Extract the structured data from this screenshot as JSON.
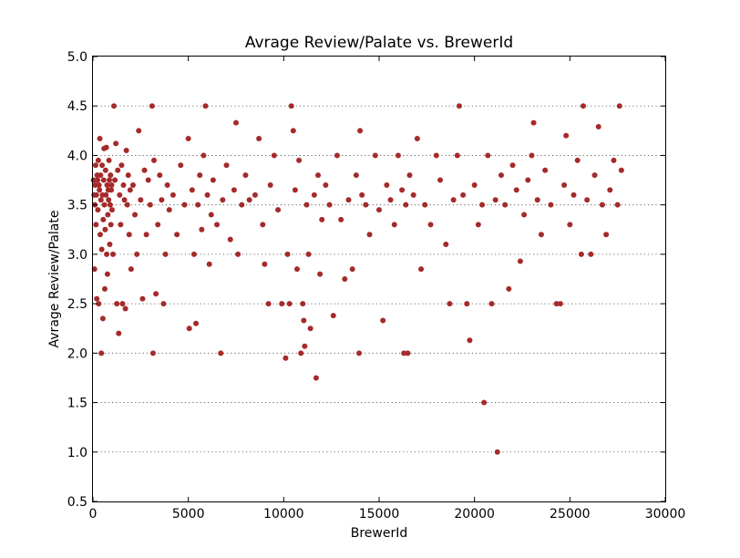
{
  "chart_data": {
    "type": "scatter",
    "title": "Avrage Review/Palate vs. BrewerId",
    "xlabel": "BrewerId",
    "ylabel": "Avrage Review/Palate",
    "xlim": [
      0,
      30000
    ],
    "ylim": [
      0.5,
      5.0
    ],
    "xticks": [
      0,
      5000,
      10000,
      15000,
      20000,
      25000,
      30000
    ],
    "yticks": [
      0.5,
      1.0,
      1.5,
      2.0,
      2.5,
      3.0,
      3.5,
      4.0,
      4.5,
      5.0
    ],
    "xtick_labels": [
      "0",
      "5000",
      "10000",
      "15000",
      "20000",
      "25000",
      "30000"
    ],
    "ytick_labels": [
      "0.5",
      "1.0",
      "1.5",
      "2.0",
      "2.5",
      "3.0",
      "3.5",
      "4.0",
      "4.5",
      "5.0"
    ],
    "grid": "horizontal-dotted",
    "marker_color": "#a52a2a",
    "series": [
      {
        "points": [
          [
            30,
            3.75
          ],
          [
            60,
            3.6
          ],
          [
            80,
            2.85
          ],
          [
            100,
            3.5
          ],
          [
            120,
            3.7
          ],
          [
            140,
            3.9
          ],
          [
            160,
            3.3
          ],
          [
            180,
            3.6
          ],
          [
            200,
            2.55
          ],
          [
            220,
            3.8
          ],
          [
            240,
            3.75
          ],
          [
            260,
            3.45
          ],
          [
            280,
            3.95
          ],
          [
            300,
            2.5
          ],
          [
            320,
            3.7
          ],
          [
            340,
            3.65
          ],
          [
            360,
            4.17
          ],
          [
            380,
            3.2
          ],
          [
            400,
            3.8
          ],
          [
            420,
            3.55
          ],
          [
            440,
            2.0
          ],
          [
            460,
            3.05
          ],
          [
            480,
            3.9
          ],
          [
            500,
            3.6
          ],
          [
            520,
            2.35
          ],
          [
            540,
            3.35
          ],
          [
            560,
            3.75
          ],
          [
            580,
            4.07
          ],
          [
            600,
            3.5
          ],
          [
            620,
            2.65
          ],
          [
            640,
            3.25
          ],
          [
            660,
            3.85
          ],
          [
            680,
            3.6
          ],
          [
            700,
            4.08
          ],
          [
            720,
            3.0
          ],
          [
            740,
            3.7
          ],
          [
            760,
            2.8
          ],
          [
            780,
            3.4
          ],
          [
            800,
            3.65
          ],
          [
            820,
            3.55
          ],
          [
            840,
            3.95
          ],
          [
            860,
            3.75
          ],
          [
            880,
            3.1
          ],
          [
            900,
            3.5
          ],
          [
            920,
            3.8
          ],
          [
            940,
            3.3
          ],
          [
            960,
            3.65
          ],
          [
            980,
            3.7
          ],
          [
            1000,
            3.45
          ],
          [
            1050,
            3.0
          ],
          [
            1100,
            4.5
          ],
          [
            1150,
            3.75
          ],
          [
            1200,
            4.12
          ],
          [
            1250,
            2.5
          ],
          [
            1300,
            3.85
          ],
          [
            1350,
            2.2
          ],
          [
            1400,
            3.6
          ],
          [
            1450,
            3.3
          ],
          [
            1500,
            3.9
          ],
          [
            1550,
            2.5
          ],
          [
            1600,
            3.7
          ],
          [
            1650,
            3.55
          ],
          [
            1700,
            2.45
          ],
          [
            1750,
            4.05
          ],
          [
            1800,
            3.5
          ],
          [
            1850,
            3.8
          ],
          [
            1900,
            3.2
          ],
          [
            1950,
            3.65
          ],
          [
            2000,
            2.85
          ],
          [
            2100,
            3.7
          ],
          [
            2200,
            3.4
          ],
          [
            2300,
            3.0
          ],
          [
            2400,
            4.25
          ],
          [
            2500,
            3.55
          ],
          [
            2600,
            2.55
          ],
          [
            2700,
            3.85
          ],
          [
            2800,
            3.2
          ],
          [
            2900,
            3.75
          ],
          [
            3000,
            3.5
          ],
          [
            3100,
            4.5
          ],
          [
            3150,
            2.0
          ],
          [
            3200,
            3.95
          ],
          [
            3300,
            2.6
          ],
          [
            3400,
            3.3
          ],
          [
            3500,
            3.8
          ],
          [
            3600,
            3.55
          ],
          [
            3700,
            2.5
          ],
          [
            3800,
            3.0
          ],
          [
            3900,
            3.7
          ],
          [
            4000,
            3.45
          ],
          [
            4200,
            3.6
          ],
          [
            4400,
            3.2
          ],
          [
            4600,
            3.9
          ],
          [
            4800,
            3.5
          ],
          [
            5000,
            4.17
          ],
          [
            5050,
            2.25
          ],
          [
            5200,
            3.65
          ],
          [
            5300,
            3.0
          ],
          [
            5400,
            2.3
          ],
          [
            5500,
            3.5
          ],
          [
            5600,
            3.8
          ],
          [
            5700,
            3.25
          ],
          [
            5800,
            4.0
          ],
          [
            5900,
            4.5
          ],
          [
            6000,
            3.6
          ],
          [
            6100,
            2.9
          ],
          [
            6200,
            3.4
          ],
          [
            6300,
            3.75
          ],
          [
            6500,
            3.3
          ],
          [
            6700,
            2.0
          ],
          [
            6800,
            3.55
          ],
          [
            7000,
            3.9
          ],
          [
            7200,
            3.15
          ],
          [
            7400,
            3.65
          ],
          [
            7500,
            4.33
          ],
          [
            7600,
            3.0
          ],
          [
            7800,
            3.5
          ],
          [
            8000,
            3.8
          ],
          [
            8200,
            3.55
          ],
          [
            8500,
            3.6
          ],
          [
            8700,
            4.17
          ],
          [
            8900,
            3.3
          ],
          [
            9000,
            2.9
          ],
          [
            9200,
            2.5
          ],
          [
            9300,
            3.7
          ],
          [
            9500,
            4.0
          ],
          [
            9700,
            3.45
          ],
          [
            9900,
            2.5
          ],
          [
            10100,
            1.95
          ],
          [
            10200,
            3.0
          ],
          [
            10300,
            2.5
          ],
          [
            10400,
            4.5
          ],
          [
            10500,
            4.25
          ],
          [
            10600,
            3.65
          ],
          [
            10700,
            2.85
          ],
          [
            10800,
            3.95
          ],
          [
            10900,
            2.0
          ],
          [
            11000,
            2.5
          ],
          [
            11050,
            2.33
          ],
          [
            11100,
            2.07
          ],
          [
            11200,
            3.5
          ],
          [
            11300,
            3.0
          ],
          [
            11400,
            2.25
          ],
          [
            11600,
            3.6
          ],
          [
            11700,
            1.75
          ],
          [
            11800,
            3.8
          ],
          [
            11900,
            2.8
          ],
          [
            12000,
            3.35
          ],
          [
            12200,
            3.7
          ],
          [
            12400,
            3.5
          ],
          [
            12600,
            2.38
          ],
          [
            12800,
            4.0
          ],
          [
            13000,
            3.35
          ],
          [
            13200,
            2.75
          ],
          [
            13400,
            3.55
          ],
          [
            13600,
            2.85
          ],
          [
            13800,
            3.8
          ],
          [
            13950,
            2.0
          ],
          [
            14000,
            4.25
          ],
          [
            14100,
            3.6
          ],
          [
            14300,
            3.5
          ],
          [
            14500,
            3.2
          ],
          [
            14800,
            4.0
          ],
          [
            15000,
            3.45
          ],
          [
            15200,
            2.33
          ],
          [
            15400,
            3.7
          ],
          [
            15600,
            3.55
          ],
          [
            15800,
            3.3
          ],
          [
            16000,
            4.0
          ],
          [
            16200,
            3.65
          ],
          [
            16300,
            2.0
          ],
          [
            16400,
            3.5
          ],
          [
            16500,
            2.0
          ],
          [
            16600,
            3.8
          ],
          [
            16800,
            3.6
          ],
          [
            17000,
            4.17
          ],
          [
            17200,
            2.85
          ],
          [
            17400,
            3.5
          ],
          [
            17700,
            3.3
          ],
          [
            18000,
            4.0
          ],
          [
            18200,
            3.75
          ],
          [
            18500,
            3.1
          ],
          [
            18700,
            2.5
          ],
          [
            18900,
            3.55
          ],
          [
            19100,
            4.0
          ],
          [
            19200,
            4.5
          ],
          [
            19400,
            3.6
          ],
          [
            19600,
            2.5
          ],
          [
            19750,
            2.13
          ],
          [
            20000,
            3.7
          ],
          [
            20200,
            3.3
          ],
          [
            20400,
            3.5
          ],
          [
            20500,
            1.5
          ],
          [
            20700,
            4.0
          ],
          [
            20900,
            2.5
          ],
          [
            21100,
            3.55
          ],
          [
            21200,
            1.0
          ],
          [
            21400,
            3.8
          ],
          [
            21600,
            3.5
          ],
          [
            21800,
            2.65
          ],
          [
            22000,
            3.9
          ],
          [
            22200,
            3.65
          ],
          [
            22400,
            2.93
          ],
          [
            22600,
            3.4
          ],
          [
            22800,
            3.75
          ],
          [
            23000,
            4.0
          ],
          [
            23100,
            4.33
          ],
          [
            23300,
            3.55
          ],
          [
            23500,
            3.2
          ],
          [
            23700,
            3.85
          ],
          [
            24000,
            3.5
          ],
          [
            24300,
            2.5
          ],
          [
            24500,
            2.5
          ],
          [
            24700,
            3.7
          ],
          [
            24800,
            4.2
          ],
          [
            25000,
            3.3
          ],
          [
            25200,
            3.6
          ],
          [
            25400,
            3.95
          ],
          [
            25600,
            3.0
          ],
          [
            25700,
            4.5
          ],
          [
            25900,
            3.55
          ],
          [
            26100,
            3.0
          ],
          [
            26300,
            3.8
          ],
          [
            26500,
            4.29
          ],
          [
            26700,
            3.5
          ],
          [
            26900,
            3.2
          ],
          [
            27100,
            3.65
          ],
          [
            27300,
            3.95
          ],
          [
            27500,
            3.5
          ],
          [
            27600,
            4.5
          ],
          [
            27700,
            3.85
          ]
        ]
      }
    ]
  }
}
